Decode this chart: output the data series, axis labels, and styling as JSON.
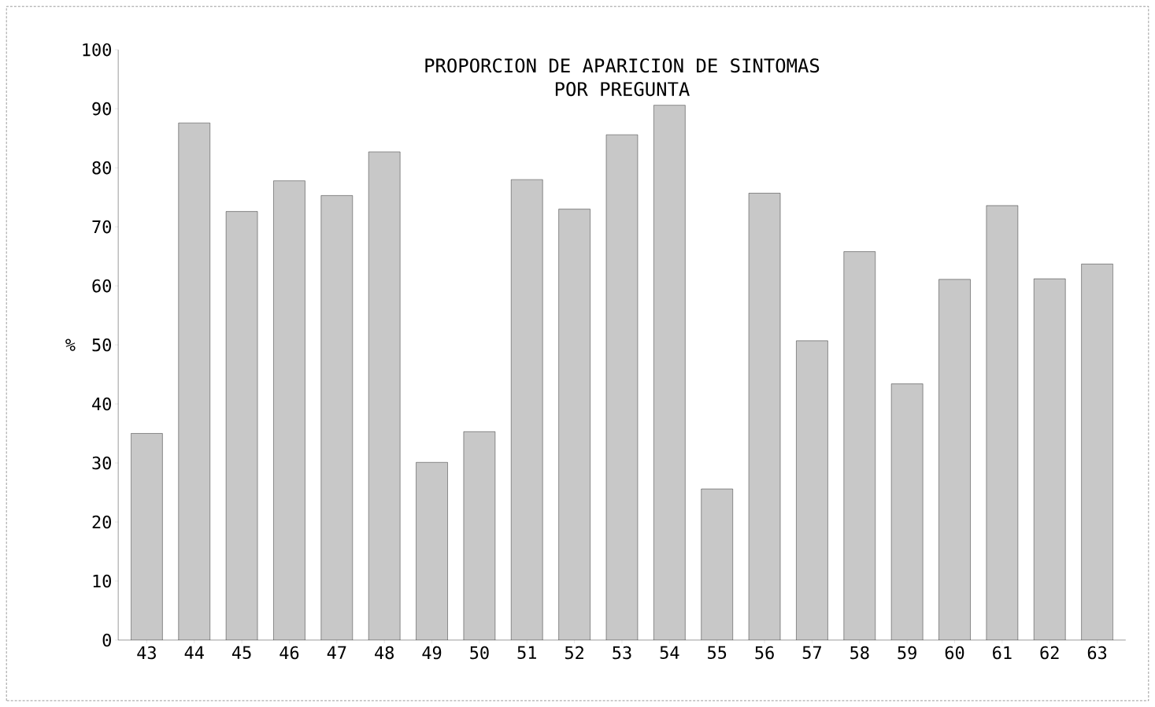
{
  "chart_data": {
    "type": "bar",
    "title": "PROPORCION DE APARICION DE SINTOMAS",
    "subtitle": "POR PREGUNTA",
    "ylabel": "%",
    "categories": [
      "43",
      "44",
      "45",
      "46",
      "47",
      "48",
      "49",
      "50",
      "51",
      "52",
      "53",
      "54",
      "55",
      "56",
      "57",
      "58",
      "59",
      "60",
      "61",
      "62",
      "63"
    ],
    "values": [
      35,
      87.6,
      72.6,
      77.8,
      75.3,
      82.7,
      30.1,
      35.3,
      78,
      73,
      85.6,
      90.6,
      25.6,
      75.7,
      50.7,
      65.8,
      43.4,
      61.1,
      73.6,
      61.2,
      63.7
    ],
    "color": "#c8c8c8",
    "ylim": [
      0,
      100
    ],
    "yticks": [
      0,
      10,
      20,
      30,
      40,
      50,
      60,
      70,
      80,
      90,
      100
    ],
    "grid": false
  }
}
